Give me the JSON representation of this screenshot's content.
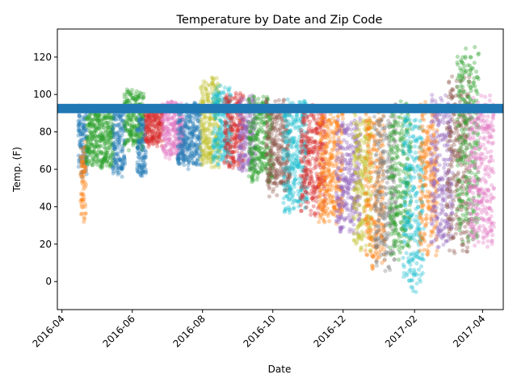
{
  "chart_data": {
    "type": "scatter",
    "title": "Temperature by Date and Zip Code",
    "xlabel": "Date",
    "ylabel": "Temp. (F)",
    "xlim": [
      "2016-03-28",
      "2017-04-19"
    ],
    "ylim": [
      -15,
      135
    ],
    "x_ticks": [
      {
        "date": "2016-04-01",
        "label": "2016-04"
      },
      {
        "date": "2016-06-01",
        "label": "2016-06"
      },
      {
        "date": "2016-08-01",
        "label": "2016-08"
      },
      {
        "date": "2016-10-01",
        "label": "2016-10"
      },
      {
        "date": "2016-12-01",
        "label": "2016-12"
      },
      {
        "date": "2017-02-01",
        "label": "2017-02"
      },
      {
        "date": "2017-04-01",
        "label": "2017-04"
      }
    ],
    "y_ticks": [
      0,
      20,
      40,
      60,
      80,
      100,
      120
    ],
    "grid": false,
    "legend": "none",
    "threshold_band": {
      "y_min": 90,
      "y_max": 95,
      "color": "#1f77b4"
    },
    "palette": [
      "#1f77b4",
      "#ff7f0e",
      "#2ca02c",
      "#d62728",
      "#9467bd",
      "#8c564b",
      "#e377c2",
      "#7f7f7f",
      "#bcbd22",
      "#17becf"
    ],
    "segments": [
      {
        "start": "2016-04-15",
        "end": "2016-04-22",
        "color": "#1f77b4",
        "low": 55,
        "high": 95
      },
      {
        "start": "2016-04-17",
        "end": "2016-04-21",
        "color": "#ff7f0e",
        "low": 30,
        "high": 75
      },
      {
        "start": "2016-04-22",
        "end": "2016-05-15",
        "color": "#2ca02c",
        "low": 60,
        "high": 92
      },
      {
        "start": "2016-05-15",
        "end": "2016-05-25",
        "color": "#1f77b4",
        "low": 55,
        "high": 95
      },
      {
        "start": "2016-05-25",
        "end": "2016-06-10",
        "color": "#2ca02c",
        "low": 70,
        "high": 103
      },
      {
        "start": "2016-06-05",
        "end": "2016-06-12",
        "color": "#1f77b4",
        "low": 55,
        "high": 90
      },
      {
        "start": "2016-06-12",
        "end": "2016-06-27",
        "color": "#d62728",
        "low": 72,
        "high": 95
      },
      {
        "start": "2016-06-27",
        "end": "2016-07-15",
        "color": "#e377c2",
        "low": 65,
        "high": 97
      },
      {
        "start": "2016-07-10",
        "end": "2016-07-30",
        "color": "#1f77b4",
        "low": 60,
        "high": 96
      },
      {
        "start": "2016-07-30",
        "end": "2016-08-15",
        "color": "#bcbd22",
        "low": 60,
        "high": 110
      },
      {
        "start": "2016-08-10",
        "end": "2016-08-25",
        "color": "#17becf",
        "low": 62,
        "high": 105
      },
      {
        "start": "2016-08-20",
        "end": "2016-09-05",
        "color": "#d62728",
        "low": 60,
        "high": 102
      },
      {
        "start": "2016-09-01",
        "end": "2016-09-15",
        "color": "#9467bd",
        "low": 58,
        "high": 100
      },
      {
        "start": "2016-09-10",
        "end": "2016-09-30",
        "color": "#2ca02c",
        "low": 52,
        "high": 100
      },
      {
        "start": "2016-09-25",
        "end": "2016-10-15",
        "color": "#8c564b",
        "low": 45,
        "high": 98
      },
      {
        "start": "2016-10-10",
        "end": "2016-10-30",
        "color": "#17becf",
        "low": 35,
        "high": 100
      },
      {
        "start": "2016-10-25",
        "end": "2016-11-15",
        "color": "#d62728",
        "low": 35,
        "high": 95
      },
      {
        "start": "2016-11-10",
        "end": "2016-11-30",
        "color": "#ff7f0e",
        "low": 30,
        "high": 92
      },
      {
        "start": "2016-11-25",
        "end": "2016-12-15",
        "color": "#9467bd",
        "low": 25,
        "high": 88
      },
      {
        "start": "2016-12-10",
        "end": "2016-12-25",
        "color": "#bcbd22",
        "low": 15,
        "high": 95
      },
      {
        "start": "2016-12-20",
        "end": "2017-01-05",
        "color": "#ff7f0e",
        "low": 5,
        "high": 92
      },
      {
        "start": "2016-12-28",
        "end": "2017-01-15",
        "color": "#7f7f7f",
        "low": 5,
        "high": 95
      },
      {
        "start": "2017-01-10",
        "end": "2017-01-28",
        "color": "#2ca02c",
        "low": 10,
        "high": 98
      },
      {
        "start": "2017-01-22",
        "end": "2017-02-08",
        "color": "#17becf",
        "low": -8,
        "high": 96
      },
      {
        "start": "2017-02-05",
        "end": "2017-02-20",
        "color": "#ff7f0e",
        "low": 12,
        "high": 98
      },
      {
        "start": "2017-02-15",
        "end": "2017-03-05",
        "color": "#9467bd",
        "low": 15,
        "high": 100
      },
      {
        "start": "2017-03-01",
        "end": "2017-03-20",
        "color": "#8c564b",
        "low": 15,
        "high": 110
      },
      {
        "start": "2017-03-10",
        "end": "2017-03-28",
        "color": "#2ca02c",
        "low": 20,
        "high": 127
      },
      {
        "start": "2017-03-20",
        "end": "2017-04-10",
        "color": "#e377c2",
        "low": 18,
        "high": 100
      }
    ]
  }
}
